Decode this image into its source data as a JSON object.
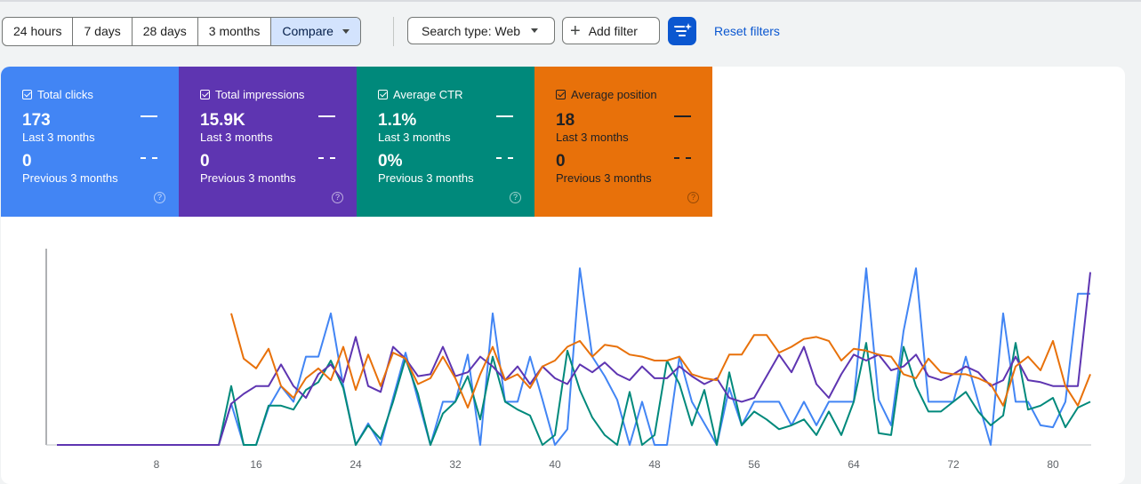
{
  "toolbar": {
    "ranges": [
      "24 hours",
      "7 days",
      "28 days",
      "3 months"
    ],
    "compare_label": "Compare",
    "search_type_label": "Search type: Web",
    "add_filter_label": "Add filter",
    "reset_label": "Reset filters"
  },
  "metrics": [
    {
      "label": "Total clicks",
      "value": "173",
      "period": "Last 3 months",
      "prev_value": "0",
      "prev_period": "Previous 3 months",
      "color": "#4285f4"
    },
    {
      "label": "Total impressions",
      "value": "15.9K",
      "period": "Last 3 months",
      "prev_value": "0",
      "prev_period": "Previous 3 months",
      "color": "#5e35b1"
    },
    {
      "label": "Average CTR",
      "value": "1.1%",
      "period": "Last 3 months",
      "prev_value": "0%",
      "prev_period": "Previous 3 months",
      "color": "#00897b"
    },
    {
      "label": "Average position",
      "value": "18",
      "period": "Last 3 months",
      "prev_value": "0",
      "prev_period": "Previous 3 months",
      "color": "#e8710a"
    }
  ],
  "chart_data": {
    "type": "line",
    "x_ticks": [
      8,
      16,
      24,
      32,
      40,
      48,
      56,
      64,
      72,
      80
    ],
    "xlim": [
      0,
      83
    ],
    "ylim": [
      0,
      100
    ],
    "grid": false,
    "legend": "none",
    "x": [
      0,
      1,
      2,
      3,
      4,
      5,
      6,
      7,
      8,
      9,
      10,
      11,
      12,
      13,
      14,
      15,
      16,
      17,
      18,
      19,
      20,
      21,
      22,
      23,
      24,
      25,
      26,
      27,
      28,
      29,
      30,
      31,
      32,
      33,
      34,
      35,
      36,
      37,
      38,
      39,
      40,
      41,
      42,
      43,
      44,
      45,
      46,
      47,
      48,
      49,
      50,
      51,
      52,
      53,
      54,
      55,
      56,
      57,
      58,
      59,
      60,
      61,
      62,
      63,
      64,
      65,
      66,
      67,
      68,
      69,
      70,
      71,
      72,
      73,
      74,
      75,
      76,
      77,
      78,
      79,
      80,
      81,
      82,
      83
    ],
    "series": [
      {
        "color": "#4285f4",
        "values": [
          0,
          0,
          0,
          0,
          0,
          0,
          0,
          0,
          0,
          0,
          0,
          0,
          0,
          0,
          21,
          0,
          0,
          19,
          30,
          22,
          45,
          45,
          67,
          30,
          0,
          11,
          0,
          24,
          47,
          23,
          0,
          22,
          22,
          46,
          0,
          67,
          22,
          22,
          45,
          23,
          0,
          8,
          90,
          45,
          35,
          23,
          0,
          22,
          0,
          0,
          45,
          22,
          11,
          0,
          29,
          10,
          22,
          22,
          22,
          10,
          22,
          10,
          22,
          22,
          22,
          90,
          23,
          10,
          58,
          90,
          22,
          22,
          22,
          45,
          22,
          0,
          67,
          22,
          22,
          10,
          9,
          22,
          77,
          77
        ]
      },
      {
        "color": "#00897b",
        "values": [
          0,
          0,
          0,
          0,
          0,
          0,
          0,
          0,
          0,
          0,
          0,
          0,
          0,
          0,
          30,
          0,
          0,
          20,
          20,
          18,
          28,
          32,
          43,
          29,
          0,
          10,
          3,
          22,
          44,
          26,
          0,
          16,
          22,
          35,
          13,
          45,
          22,
          18,
          15,
          0,
          5,
          48,
          28,
          14,
          5,
          0,
          27,
          0,
          5,
          43,
          31,
          10,
          28,
          0,
          37,
          10,
          17,
          13,
          8,
          10,
          13,
          5,
          17,
          5,
          22,
          52,
          6,
          5,
          50,
          30,
          17,
          17,
          22,
          27,
          17,
          10,
          15,
          52,
          18,
          20,
          24,
          9,
          19,
          22
        ]
      },
      {
        "color": "#5e35b1",
        "values": [
          0,
          0,
          0,
          0,
          0,
          0,
          0,
          0,
          0,
          0,
          0,
          0,
          0,
          0,
          21,
          26,
          30,
          30,
          41,
          30,
          24,
          36,
          41,
          32,
          55,
          30,
          27,
          50,
          44,
          35,
          36,
          50,
          35,
          37,
          45,
          40,
          33,
          40,
          31,
          40,
          34,
          31,
          41,
          37,
          42,
          36,
          33,
          40,
          34,
          34,
          40,
          35,
          31,
          34,
          24,
          22,
          24,
          35,
          46,
          37,
          50,
          31,
          24,
          36,
          46,
          43,
          46,
          38,
          40,
          46,
          35,
          33,
          36,
          40,
          37,
          30,
          33,
          45,
          33,
          32,
          30,
          30,
          30,
          88
        ]
      },
      {
        "color": "#e8710a",
        "values": [
          null,
          null,
          null,
          null,
          null,
          null,
          null,
          null,
          null,
          null,
          null,
          null,
          null,
          null,
          67,
          44,
          39,
          49,
          30,
          24,
          34,
          39,
          33,
          50,
          28,
          46,
          30,
          47,
          44,
          31,
          34,
          45,
          34,
          19,
          36,
          50,
          33,
          36,
          29,
          40,
          43,
          50,
          53,
          45,
          51,
          50,
          46,
          45,
          43,
          43,
          45,
          36,
          34,
          33,
          46,
          46,
          56,
          56,
          47,
          50,
          54,
          55,
          53,
          43,
          49,
          48,
          46,
          45,
          36,
          34,
          44,
          37,
          36,
          36,
          34,
          31,
          20,
          40,
          45,
          38,
          53,
          30,
          20,
          36
        ]
      }
    ]
  }
}
